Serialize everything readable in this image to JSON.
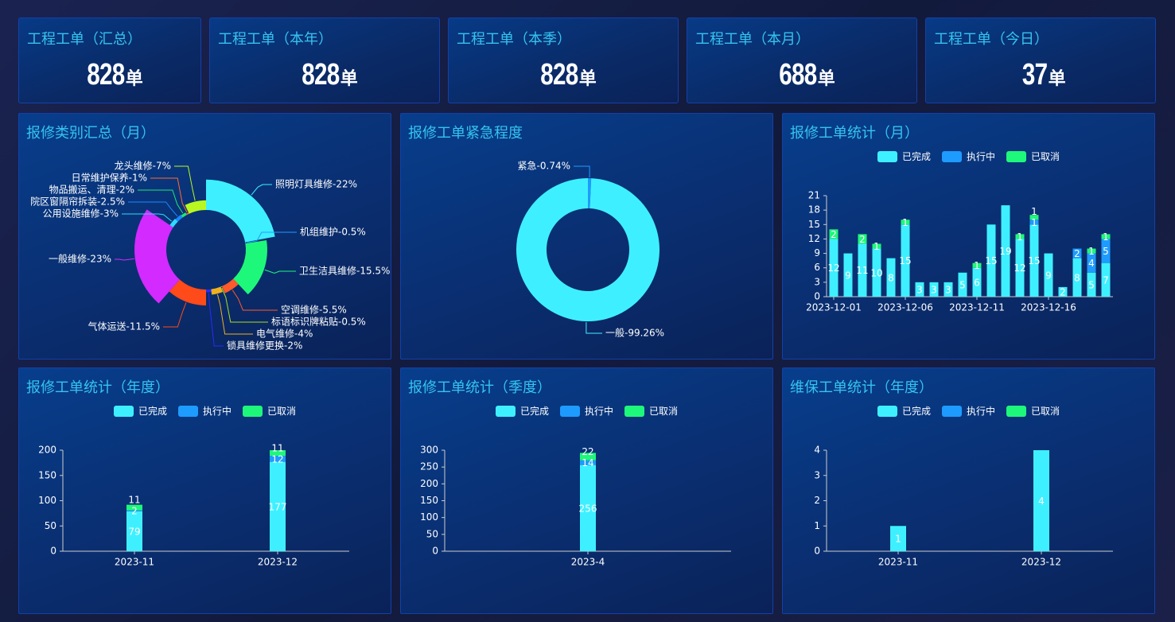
{
  "kpis": [
    {
      "title": "工程工单（汇总）",
      "value": "828",
      "unit": "单"
    },
    {
      "title": "工程工单（本年）",
      "value": "828",
      "unit": "单"
    },
    {
      "title": "工程工单（本季）",
      "value": "828",
      "unit": "单"
    },
    {
      "title": "工程工单（本月）",
      "value": "688",
      "unit": "单"
    },
    {
      "title": "工程工单（今日）",
      "value": "37",
      "unit": "单"
    }
  ],
  "colors": {
    "completed": "#3ef0ff",
    "executing": "#1e9bff",
    "cancelled": "#1ef87a",
    "title": "#35c4f0"
  },
  "chart_data": [
    {
      "type": "pie",
      "rose": true,
      "title": "报修类别汇总（月）",
      "slices": [
        {
          "name": "照明灯具维修",
          "value": 22,
          "label": "照明灯具维修-22%",
          "color": "#3ef0ff"
        },
        {
          "name": "机组维护",
          "value": 0.5,
          "label": "机组维护-0.5%",
          "color": "#1e9bff"
        },
        {
          "name": "卫生洁具维修",
          "value": 15.5,
          "label": "卫生洁具维修-15.5%",
          "color": "#1ef87a"
        },
        {
          "name": "空调维修",
          "value": 5.5,
          "label": "空调维修-5.5%",
          "color": "#ff5a2a"
        },
        {
          "name": "标语标识牌粘贴",
          "value": 0.5,
          "label": "标语标识牌粘贴-0.5%",
          "color": "#a8e020"
        },
        {
          "name": "电气维修",
          "value": 4,
          "label": "电气维修-4%",
          "color": "#f0b020"
        },
        {
          "name": "锁具维修更换",
          "value": 2,
          "label": "锁具维修更换-2%",
          "color": "#2a2aff"
        },
        {
          "name": "气体运送",
          "value": 11.5,
          "label": "气体运送-11.5%",
          "color": "#ff4a1a"
        },
        {
          "name": "一般维修",
          "value": 23,
          "label": "一般维修-23%",
          "color": "#d22aff"
        },
        {
          "name": "公用设施维修",
          "value": 3,
          "label": "公用设施维修-3%",
          "color": "#30d8ff"
        },
        {
          "name": "院区窗隔帘拆装",
          "value": 2.5,
          "label": "院区窗隔帘拆装-2.5%",
          "color": "#1a8aff"
        },
        {
          "name": "物品搬运、清理",
          "value": 2,
          "label": "物品搬运、清理-2%",
          "color": "#1ee870"
        },
        {
          "name": "日常维护保养",
          "value": 1,
          "label": "日常维护保养-1%",
          "color": "#ff6a30"
        },
        {
          "name": "龙头维修",
          "value": 7,
          "label": "龙头维修-7%",
          "color": "#b8f820"
        }
      ]
    },
    {
      "type": "pie",
      "title": "报修工单紧急程度",
      "slices": [
        {
          "name": "紧急",
          "value": 0.74,
          "label": "紧急-0.74%",
          "color": "#1e9bff"
        },
        {
          "name": "一般",
          "value": 99.26,
          "label": "一般-99.26%",
          "color": "#3ef0ff"
        }
      ]
    },
    {
      "type": "bar",
      "stacked": true,
      "title": "报修工单统计（月）",
      "categories": [
        1,
        2,
        3,
        4,
        5,
        6,
        7,
        8,
        9,
        10,
        11,
        12,
        13,
        14,
        15,
        16,
        17,
        18,
        19,
        20
      ],
      "x_tick_labels": [
        "2023-12-01",
        "2023-12-06",
        "2023-12-11",
        "2023-12-16"
      ],
      "x_tick_interval": 5,
      "ylim": [
        0,
        21
      ],
      "yticks": [
        0,
        3,
        6,
        9,
        12,
        15,
        18,
        21
      ],
      "series": [
        {
          "name": "已完成",
          "values": [
            12,
            9,
            11,
            10,
            8,
            15,
            3,
            3,
            3,
            5,
            6,
            15,
            19,
            12,
            15,
            9,
            2,
            8,
            5,
            7
          ]
        },
        {
          "name": "执行中",
          "values": [
            0,
            0,
            0,
            0,
            0,
            0,
            0,
            0,
            0,
            0,
            0,
            0,
            0,
            0,
            1,
            0,
            0,
            2,
            4,
            5
          ]
        },
        {
          "name": "已取消",
          "values": [
            2,
            0,
            2,
            1,
            0,
            1,
            0,
            0,
            0,
            0,
            1,
            0,
            0,
            1,
            1,
            0,
            0,
            0,
            1,
            1
          ]
        }
      ]
    },
    {
      "type": "bar",
      "stacked": true,
      "title": "报修工单统计（年度）",
      "categories": [
        "2023-11",
        "2023-12"
      ],
      "ylim": [
        0,
        200
      ],
      "yticks": [
        0,
        50,
        100,
        150,
        200
      ],
      "series": [
        {
          "name": "已完成",
          "values": [
            79,
            177
          ]
        },
        {
          "name": "执行中",
          "values": [
            2,
            12
          ]
        },
        {
          "name": "已取消",
          "values": [
            11,
            11
          ]
        }
      ]
    },
    {
      "type": "bar",
      "stacked": true,
      "title": "报修工单统计（季度）",
      "categories": [
        "2023-4"
      ],
      "ylim": [
        0,
        300
      ],
      "yticks": [
        0,
        50,
        100,
        150,
        200,
        250,
        300
      ],
      "series": [
        {
          "name": "已完成",
          "values": [
            256
          ]
        },
        {
          "name": "执行中",
          "values": [
            14
          ]
        },
        {
          "name": "已取消",
          "values": [
            22
          ]
        }
      ]
    },
    {
      "type": "bar",
      "stacked": true,
      "title": "维保工单统计（年度）",
      "categories": [
        "2023-11",
        "2023-12"
      ],
      "ylim": [
        0,
        4
      ],
      "yticks": [
        0,
        1,
        2,
        3,
        4
      ],
      "series": [
        {
          "name": "已完成",
          "values": [
            1,
            4
          ]
        },
        {
          "name": "执行中",
          "values": [
            0,
            0
          ]
        },
        {
          "name": "已取消",
          "values": [
            0,
            0
          ]
        }
      ]
    }
  ]
}
